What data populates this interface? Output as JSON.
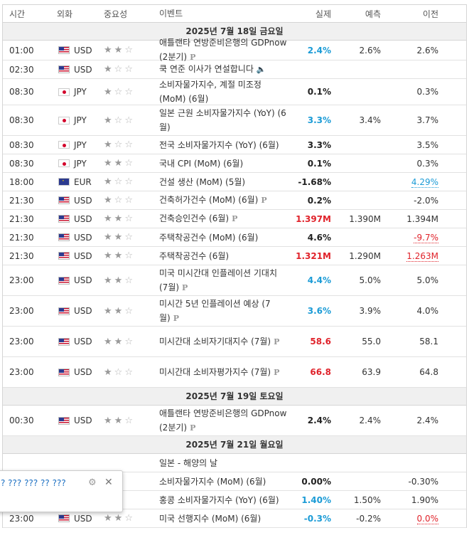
{
  "headers": {
    "time": "시간",
    "currency": "외화",
    "importance": "중요성",
    "event": "이벤트",
    "actual": "실제",
    "forecast": "예측",
    "previous": "이전"
  },
  "sections": [
    {
      "date": "2025년 7월 18일 금요일",
      "rows": [
        {
          "time": "01:00",
          "flag": "us",
          "currency": "USD",
          "stars": 2,
          "event": "애틀랜타 연방준비은행의 GDPnow (2분기)",
          "p": true,
          "actual": "2.4%",
          "actual_style": "blue",
          "forecast": "2.6%",
          "previous": "2.6%",
          "previous_style": ""
        },
        {
          "time": "02:30",
          "flag": "us",
          "currency": "USD",
          "stars": 1,
          "event": "쿡 연준 이사가 연설합니다",
          "speech": true,
          "actual": "",
          "actual_style": "",
          "forecast": "",
          "previous": "",
          "previous_style": ""
        },
        {
          "time": "08:30",
          "flag": "jp",
          "currency": "JPY",
          "stars": 1,
          "event": "소비자물가지수, 계절 미조정 (MoM) (6월)",
          "actual": "0.1%",
          "actual_style": "black",
          "forecast": "",
          "previous": "0.3%",
          "previous_style": ""
        },
        {
          "time": "08:30",
          "flag": "jp",
          "currency": "JPY",
          "stars": 1,
          "event": "일본 근원 소비자물가지수 (YoY) (6월)",
          "actual": "3.3%",
          "actual_style": "blue",
          "forecast": "3.4%",
          "previous": "3.7%",
          "previous_style": ""
        },
        {
          "time": "08:30",
          "flag": "jp",
          "currency": "JPY",
          "stars": 1,
          "event": "전국 소비자물가지수 (YoY) (6월)",
          "actual": "3.3%",
          "actual_style": "black",
          "forecast": "",
          "previous": "3.5%",
          "previous_style": ""
        },
        {
          "time": "08:30",
          "flag": "jp",
          "currency": "JPY",
          "stars": 2,
          "event": "국내 CPI (MoM) (6월)",
          "actual": "0.1%",
          "actual_style": "black",
          "forecast": "",
          "previous": "0.3%",
          "previous_style": ""
        },
        {
          "time": "18:00",
          "flag": "eu",
          "currency": "EUR",
          "stars": 1,
          "event": "건설 생산 (MoM) (5월)",
          "actual": "-1.68%",
          "actual_style": "black",
          "forecast": "",
          "previous": "4.29%",
          "previous_style": "prev-blue"
        },
        {
          "time": "21:30",
          "flag": "us",
          "currency": "USD",
          "stars": 1,
          "event": "건축허가건수 (MoM) (6월)",
          "p": true,
          "actual": "0.2%",
          "actual_style": "black",
          "forecast": "",
          "previous": "-2.0%",
          "previous_style": ""
        },
        {
          "time": "21:30",
          "flag": "us",
          "currency": "USD",
          "stars": 2,
          "event": "건축승인건수 (6월)",
          "p": true,
          "actual": "1.397M",
          "actual_style": "red",
          "forecast": "1.390M",
          "previous": "1.394M",
          "previous_style": ""
        },
        {
          "time": "21:30",
          "flag": "us",
          "currency": "USD",
          "stars": 2,
          "event": "주택착공건수 (MoM) (6월)",
          "actual": "4.6%",
          "actual_style": "black",
          "forecast": "",
          "previous": "-9.7%",
          "previous_style": "prev-red"
        },
        {
          "time": "21:30",
          "flag": "us",
          "currency": "USD",
          "stars": 2,
          "event": "주택착공건수 (6월)",
          "actual": "1.321M",
          "actual_style": "red",
          "forecast": "1.290M",
          "previous": "1.263M",
          "previous_style": "prev-red"
        },
        {
          "time": "23:00",
          "flag": "us",
          "currency": "USD",
          "stars": 2,
          "event": "미국 미시간대 인플레이션 기대치 (7월)",
          "p": true,
          "actual": "4.4%",
          "actual_style": "blue",
          "forecast": "5.0%",
          "previous": "5.0%",
          "previous_style": ""
        },
        {
          "time": "23:00",
          "flag": "us",
          "currency": "USD",
          "stars": 2,
          "event": "미시간 5년 인플레이션 예상 (7월)",
          "p": true,
          "actual": "3.6%",
          "actual_style": "blue",
          "forecast": "3.9%",
          "previous": "4.0%",
          "previous_style": ""
        },
        {
          "time": "23:00",
          "flag": "us",
          "currency": "USD",
          "stars": 2,
          "event": "미시간대 소비자기대지수 (7월)",
          "p": true,
          "actual": "58.6",
          "actual_style": "red",
          "forecast": "55.0",
          "previous": "58.1",
          "previous_style": ""
        },
        {
          "time": "23:00",
          "flag": "us",
          "currency": "USD",
          "stars": 1,
          "event": "미시간대 소비자평가지수 (7월)",
          "p": true,
          "actual": "66.8",
          "actual_style": "red",
          "forecast": "63.9",
          "previous": "64.8",
          "previous_style": ""
        }
      ]
    },
    {
      "date": "2025년 7월 19일 토요일",
      "rows": [
        {
          "time": "00:30",
          "flag": "us",
          "currency": "USD",
          "stars": 2,
          "event": "애틀랜타 연방준비은행의 GDPnow (2분기)",
          "p": true,
          "actual": "2.4%",
          "actual_style": "black",
          "forecast": "2.4%",
          "previous": "2.4%",
          "previous_style": ""
        }
      ]
    },
    {
      "date": "2025년 7월 21일 월요일",
      "rows": [
        {
          "time": "",
          "flag": "",
          "currency": "",
          "stars": 0,
          "event": "일본 - 해양의 날",
          "actual": "",
          "actual_style": "",
          "forecast": "",
          "previous": "",
          "previous_style": ""
        },
        {
          "time": "",
          "flag": "",
          "currency": "",
          "stars": 0,
          "event": "소비자물가지수 (MoM) (6월)",
          "actual": "0.00%",
          "actual_style": "black",
          "forecast": "",
          "previous": "-0.30%",
          "previous_style": ""
        },
        {
          "time": "",
          "flag": "",
          "currency": "",
          "stars": 0,
          "event": "홍콩 소비자물가지수 (YoY) (6월)",
          "actual": "1.40%",
          "actual_style": "blue",
          "forecast": "1.50%",
          "previous": "1.90%",
          "previous_style": ""
        },
        {
          "time": "23:00",
          "flag": "us",
          "currency": "USD",
          "stars": 2,
          "event": "미국 선행지수 (MoM) (6월)",
          "actual": "-0.3%",
          "actual_style": "blue",
          "forecast": "-0.2%",
          "previous": "0.0%",
          "previous_style": "prev-red"
        }
      ]
    }
  ],
  "popup": {
    "text": "? ??? ??? ?? ???",
    "gear": "⚙",
    "close": "✕"
  },
  "icons": {
    "p_mark": "P",
    "speech": "🔈"
  }
}
